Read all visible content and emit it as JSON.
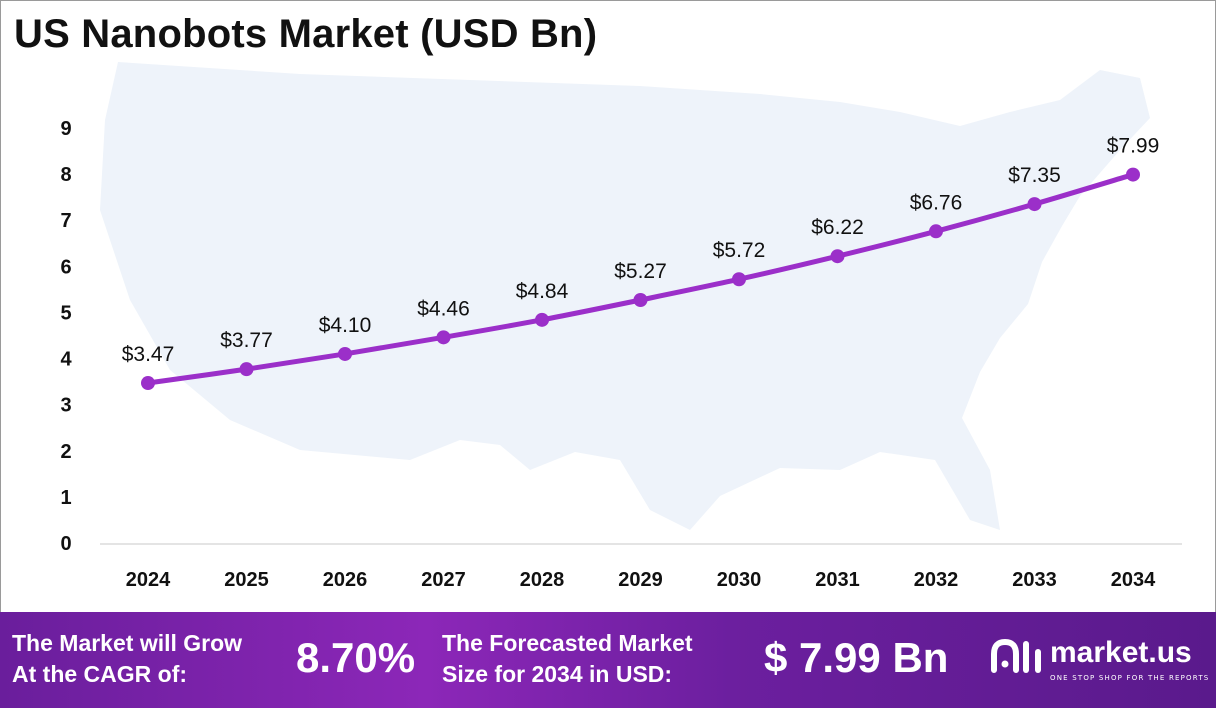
{
  "chart_data": {
    "type": "line",
    "title": "US Nanobots Market (USD Bn)",
    "xlabel": "",
    "ylabel": "",
    "categories": [
      "2024",
      "2025",
      "2026",
      "2027",
      "2028",
      "2029",
      "2030",
      "2031",
      "2032",
      "2033",
      "2034"
    ],
    "values": [
      3.47,
      3.77,
      4.1,
      4.46,
      4.84,
      5.27,
      5.72,
      6.22,
      6.76,
      7.35,
      7.99
    ],
    "data_labels": [
      "$3.47",
      "$3.77",
      "$4.10",
      "$4.46",
      "$4.84",
      "$5.27",
      "$5.72",
      "$6.22",
      "$6.76",
      "$7.35",
      "$7.99"
    ],
    "ylim": [
      0,
      9
    ],
    "yticks": [
      "0",
      "1",
      "2",
      "3",
      "4",
      "5",
      "6",
      "7",
      "8",
      "9"
    ],
    "grid": false,
    "line_color": "#9b2fc9",
    "background_shape": "us-map"
  },
  "footer": {
    "cagr_line1": "The Market will Grow",
    "cagr_line2": "At the CAGR of:",
    "cagr_value": "8.70%",
    "forecast_line1": "The Forecasted Market",
    "forecast_line2": "Size for 2034 in USD:",
    "forecast_value": "$ 7.99 Bn",
    "logo_text": "market.us",
    "logo_tagline": "ONE STOP SHOP FOR THE REPORTS"
  },
  "colors": {
    "footer_bg": "#7a22a8",
    "map_fill": "#eef3fa"
  }
}
